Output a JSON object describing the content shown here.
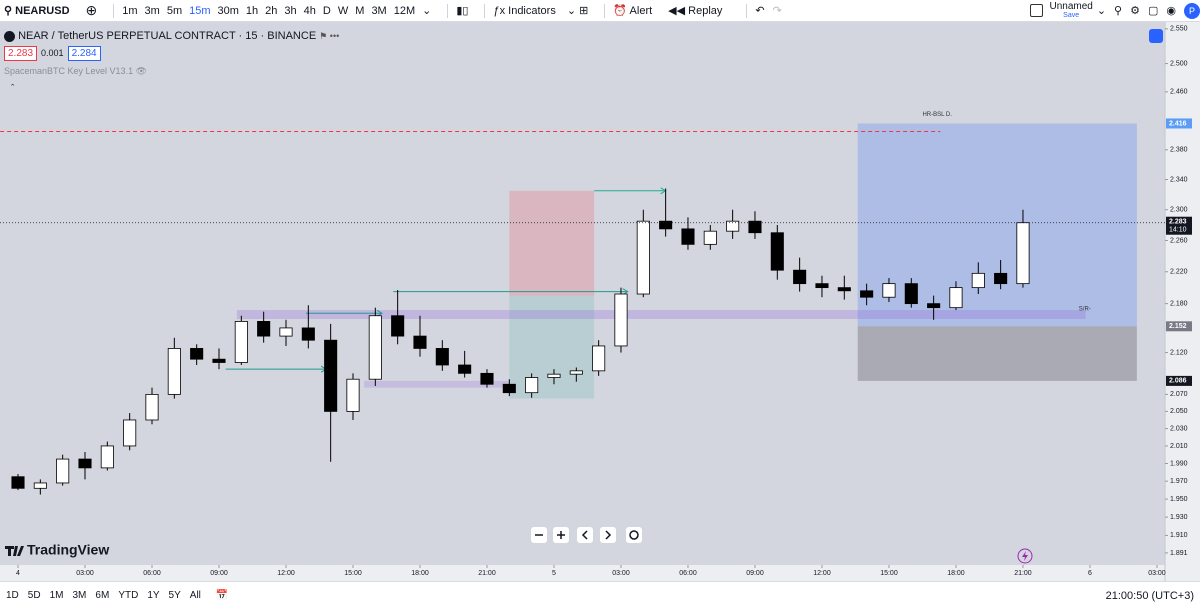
{
  "toolbar": {
    "symbol": "NEARUSD",
    "timeframes": [
      "1m",
      "3m",
      "5m",
      "15m",
      "30m",
      "1h",
      "2h",
      "3h",
      "4h",
      "D",
      "W",
      "M",
      "3M",
      "12M"
    ],
    "active_timeframe": 3,
    "indicators": "Indicators",
    "alert": "Alert",
    "replay": "Replay",
    "layout_name": "Unnamed",
    "save": "Save"
  },
  "legend": {
    "title": "NEAR / TetherUS PERPETUAL CONTRACT · 15 · BINANCE",
    "bid": 2.283,
    "spread": 0.001,
    "ask": 2.284,
    "indicator": "SpacemanBTC Key Level V13.1"
  },
  "brand": "TradingView",
  "chart_data": {
    "type": "candlestick",
    "log_scale": true,
    "xlim": [
      -0.806,
      51.36
    ],
    "ylim": [
      1.878,
      2.56
    ],
    "yticks": [
      {
        "value": 2.55,
        "label": "2.550"
      },
      {
        "value": 2.5,
        "label": "2.500"
      },
      {
        "value": 2.46,
        "label": "2.460"
      },
      {
        "value": 2.38,
        "label": "2.380"
      },
      {
        "value": 2.34,
        "label": "2.340"
      },
      {
        "value": 2.3,
        "label": "2.300"
      },
      {
        "value": 2.26,
        "label": "2.260"
      },
      {
        "value": 2.22,
        "label": "2.220"
      },
      {
        "value": 2.18,
        "label": "2.180"
      },
      {
        "value": 2.12,
        "label": "2.120"
      },
      {
        "value": 2.07,
        "label": "2.070"
      },
      {
        "value": 2.05,
        "label": "2.050"
      },
      {
        "value": 2.03,
        "label": "2.030"
      },
      {
        "value": 2.01,
        "label": "2.010"
      },
      {
        "value": 1.99,
        "label": "1.990"
      },
      {
        "value": 1.97,
        "label": "1.970"
      },
      {
        "value": 1.95,
        "label": "1.950"
      },
      {
        "value": 1.93,
        "label": "1.930"
      },
      {
        "value": 1.91,
        "label": "1.910"
      },
      1.891
    ],
    "xticks": [
      {
        "value": 0,
        "label": "4"
      },
      {
        "value": 3,
        "label": "03:00"
      },
      {
        "value": 6,
        "label": "06:00"
      },
      {
        "value": 9,
        "label": "09:00"
      },
      {
        "value": 12,
        "label": "12:00"
      },
      {
        "value": 15,
        "label": "15:00"
      },
      {
        "value": 18,
        "label": "18:00"
      },
      {
        "value": 21,
        "label": "21:00"
      },
      {
        "value": 24,
        "label": "5"
      },
      {
        "value": 27,
        "label": "03:00"
      },
      {
        "value": 30,
        "label": "06:00"
      },
      {
        "value": 33,
        "label": "09:00"
      },
      {
        "value": 36,
        "label": "12:00"
      },
      {
        "value": 39,
        "label": "15:00"
      },
      {
        "value": 42,
        "label": "18:00"
      },
      {
        "value": 45,
        "label": "21:00"
      },
      {
        "value": 48,
        "label": "6"
      },
      {
        "value": 51,
        "label": "03:00"
      }
    ],
    "candles": {
      "up_color": "#ffffff",
      "down_color": "#000000",
      "x": [
        0,
        1,
        2,
        3,
        4,
        5,
        6,
        7,
        8,
        9,
        10,
        11,
        12,
        13,
        14,
        15,
        16,
        17,
        18,
        19,
        20,
        21,
        22,
        23,
        24,
        25,
        26,
        27,
        28,
        29,
        30,
        31,
        32,
        33,
        34,
        35,
        36,
        37,
        38,
        39,
        40,
        41,
        42,
        43,
        44,
        45
      ],
      "open": [
        1.975,
        1.962,
        1.968,
        1.995,
        1.985,
        2.01,
        2.04,
        2.07,
        2.125,
        2.112,
        2.108,
        2.158,
        2.14,
        2.15,
        2.135,
        2.05,
        2.088,
        2.165,
        2.14,
        2.125,
        2.105,
        2.095,
        2.082,
        2.072,
        2.09,
        2.094,
        2.098,
        2.128,
        2.192,
        2.285,
        2.275,
        2.255,
        2.272,
        2.285,
        2.27,
        2.222,
        2.205,
        2.2,
        2.196,
        2.188,
        2.205,
        2.18,
        2.175,
        2.2,
        2.218,
        2.205
      ],
      "high": [
        1.978,
        1.972,
        2.0,
        2.003,
        2.015,
        2.048,
        2.078,
        2.138,
        2.13,
        2.125,
        2.165,
        2.17,
        2.16,
        2.178,
        2.155,
        2.095,
        2.175,
        2.197,
        2.165,
        2.135,
        2.122,
        2.1,
        2.088,
        2.095,
        2.1,
        2.102,
        2.135,
        2.2,
        2.3,
        2.328,
        2.29,
        2.28,
        2.3,
        2.298,
        2.28,
        2.238,
        2.215,
        2.215,
        2.205,
        2.212,
        2.212,
        2.19,
        2.208,
        2.232,
        2.235,
        2.3
      ],
      "low": [
        1.96,
        1.955,
        1.965,
        1.972,
        1.982,
        2.005,
        2.035,
        2.065,
        2.105,
        2.1,
        2.105,
        2.132,
        2.128,
        2.125,
        1.992,
        2.04,
        2.08,
        2.13,
        2.115,
        2.098,
        2.09,
        2.078,
        2.068,
        2.066,
        2.082,
        2.085,
        2.092,
        2.12,
        2.188,
        2.265,
        2.248,
        2.248,
        2.262,
        2.262,
        2.21,
        2.195,
        2.188,
        2.185,
        2.178,
        2.182,
        2.175,
        2.16,
        2.172,
        2.192,
        2.198,
        2.2
      ],
      "close": [
        1.962,
        1.968,
        1.995,
        1.985,
        2.01,
        2.04,
        2.07,
        2.125,
        2.112,
        2.108,
        2.158,
        2.14,
        2.15,
        2.135,
        2.05,
        2.088,
        2.165,
        2.14,
        2.125,
        2.105,
        2.095,
        2.082,
        2.072,
        2.09,
        2.094,
        2.098,
        2.128,
        2.192,
        2.285,
        2.275,
        2.255,
        2.272,
        2.285,
        2.27,
        2.222,
        2.205,
        2.2,
        2.196,
        2.188,
        2.205,
        2.18,
        2.175,
        2.2,
        2.218,
        2.205,
        2.283
      ]
    },
    "zones": [
      {
        "x": [
          22.0,
          25.8
        ],
        "y": [
          2.19,
          2.325
        ],
        "color": "rgba(242,54,69,0.2)"
      },
      {
        "x": [
          22.0,
          25.8
        ],
        "y": [
          2.065,
          2.19
        ],
        "color": "rgba(8,153,129,0.13)"
      },
      {
        "x": [
          37.6,
          50.1
        ],
        "y": [
          2.152,
          2.416
        ],
        "color": "rgba(41,98,255,0.22)"
      },
      {
        "x": [
          37.6,
          50.1
        ],
        "y": [
          2.086,
          2.152
        ],
        "color": "rgba(70,70,80,0.3)"
      },
      {
        "x": [
          9.8,
          47.8
        ],
        "y": [
          2.161,
          2.172
        ],
        "color": "rgba(150,110,220,0.3)"
      },
      {
        "x": [
          15.5,
          22.0
        ],
        "y": [
          2.078,
          2.086
        ],
        "color": "rgba(150,110,220,0.25)"
      }
    ],
    "levels": [
      {
        "price": 2.405,
        "x": [
          -0.8,
          41.3
        ],
        "color": "#f23645",
        "style": "dashed"
      },
      {
        "price": 2.195,
        "x": [
          16.8,
          27.3
        ],
        "color": "#22998e",
        "style": "solid"
      },
      {
        "price": 2.168,
        "x": [
          12.9,
          16.3
        ],
        "color": "#22998e",
        "style": "solid"
      },
      {
        "price": 2.1,
        "x": [
          9.3,
          13.8
        ],
        "color": "#22998e",
        "style": "solid"
      },
      {
        "price": 2.325,
        "x": [
          25.8,
          29.0
        ],
        "color": "#22ab94",
        "style": "solid"
      }
    ],
    "annotations": [
      {
        "text": "HR-BSL D.",
        "x": 40.5,
        "price": 2.42
      },
      {
        "text": "S/R-",
        "x": 47.5,
        "price": 2.166
      }
    ],
    "price_markers": [
      {
        "value": 2.416,
        "color": "#5b9cf6"
      },
      {
        "value": 2.283,
        "countdown": "14:10",
        "color": "#131722"
      },
      {
        "value": 2.152,
        "color": "#787b86"
      },
      {
        "value": 2.086,
        "color": "#131722"
      }
    ]
  },
  "bottom_bar": {
    "ranges": [
      "1D",
      "5D",
      "1M",
      "3M",
      "6M",
      "YTD",
      "1Y",
      "5Y",
      "All"
    ],
    "clock": "21:00:50 (UTC+3)"
  }
}
